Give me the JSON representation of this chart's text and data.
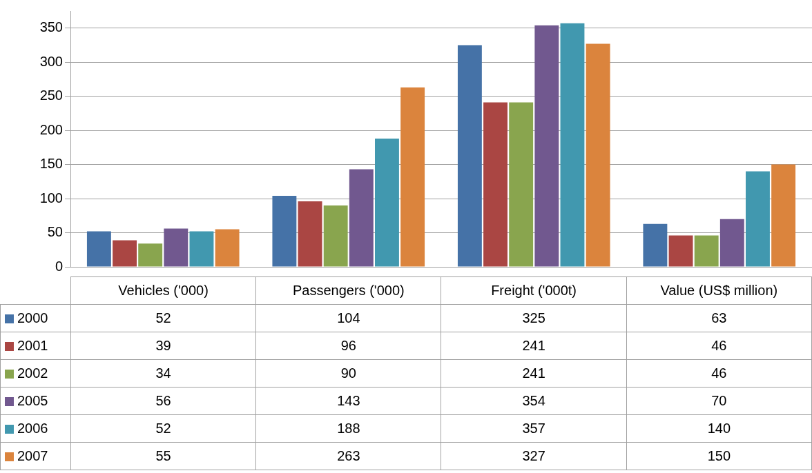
{
  "chart_data": {
    "type": "bar",
    "categories": [
      "Vehicles ('000)",
      "Passengers ('000)",
      "Freight ('000t)",
      "Value (US$ million)"
    ],
    "series": [
      {
        "name": "2000",
        "color": "#4572a7",
        "values": [
          52,
          104,
          325,
          63
        ]
      },
      {
        "name": "2001",
        "color": "#aa4643",
        "values": [
          39,
          96,
          241,
          46
        ]
      },
      {
        "name": "2002",
        "color": "#89a54e",
        "values": [
          34,
          90,
          241,
          46
        ]
      },
      {
        "name": "2005",
        "color": "#71588f",
        "values": [
          56,
          143,
          354,
          70
        ]
      },
      {
        "name": "2006",
        "color": "#4198af",
        "values": [
          52,
          188,
          357,
          140
        ]
      },
      {
        "name": "2007",
        "color": "#db843d",
        "values": [
          55,
          263,
          327,
          150
        ]
      }
    ],
    "ylim": [
      0,
      375
    ],
    "yticks": [
      0,
      50,
      100,
      150,
      200,
      250,
      300,
      350
    ],
    "grid": "y",
    "legend": "bottom",
    "data_labels": true
  }
}
